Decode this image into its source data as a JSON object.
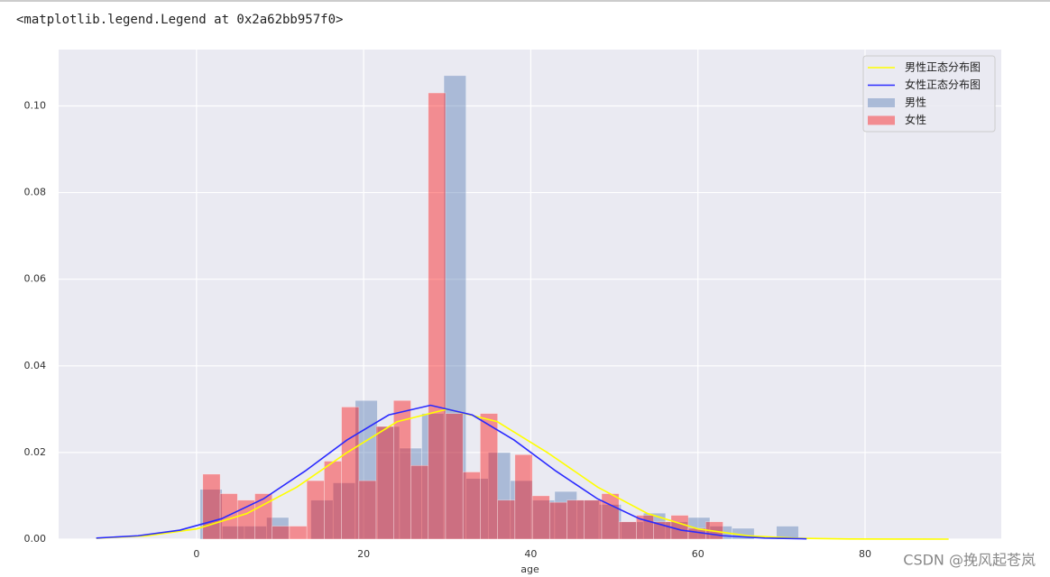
{
  "header": "<matplotlib.legend.Legend at 0x2a62bb957f0>",
  "watermark": "CSDN @挽风起苍岚",
  "chart_data": {
    "type": "hist",
    "xlabel": "age",
    "xlim": [
      -16.5,
      96.3
    ],
    "ylim": [
      0,
      0.113
    ],
    "xticks": [
      0,
      20,
      40,
      60,
      80
    ],
    "yticks": [
      {
        "value": 0,
        "label": "0.00"
      },
      {
        "value": 0.02,
        "label": "0.02"
      },
      {
        "value": 0.04,
        "label": "0.04"
      },
      {
        "value": 0.06,
        "label": "0.06"
      },
      {
        "value": 0.08,
        "label": "0.08"
      },
      {
        "value": 0.1,
        "label": "0.10"
      }
    ],
    "grid": true,
    "legend": "upper right",
    "series": [
      {
        "name": "男性正态分布图",
        "type": "line",
        "color": "#ffff00",
        "x": [
          -12,
          -6,
          0,
          6,
          12,
          18,
          24,
          30,
          36,
          42,
          48,
          54,
          60,
          66,
          72,
          78,
          84,
          90
        ],
        "values": [
          0.0002,
          0.00077,
          0.00236,
          0.00589,
          0.01201,
          0.01997,
          0.0271,
          0.03,
          0.0271,
          0.01997,
          0.01201,
          0.00589,
          0.00236,
          0.00077,
          0.0002,
          4e-05,
          1e-05,
          0
        ]
      },
      {
        "name": "女性正态分布图",
        "type": "line",
        "color": "#2a2aff",
        "x": [
          -12,
          -7,
          -2,
          3,
          8,
          13,
          18,
          23,
          28,
          33,
          38,
          43,
          48,
          53,
          58,
          63,
          68,
          73
        ],
        "values": [
          0.00025,
          0.00078,
          0.00207,
          0.00472,
          0.00929,
          0.01572,
          0.02288,
          0.02866,
          0.0309,
          0.02866,
          0.02288,
          0.01572,
          0.00929,
          0.00472,
          0.00207,
          0.00078,
          0.00025,
          7e-05
        ]
      },
      {
        "name": "男性",
        "type": "hist",
        "color": "#4c72b0",
        "bins": [
          0.42,
          3.07,
          5.73,
          8.38,
          11.03,
          13.68,
          16.34,
          18.99,
          21.64,
          24.29,
          26.95,
          29.6,
          32.25,
          34.91,
          37.56,
          40.21,
          42.86,
          45.52,
          48.17,
          50.82,
          53.47,
          56.13,
          58.78,
          61.43,
          64.08,
          66.74,
          69.39,
          72.04,
          74.69,
          77.35,
          80.0
        ],
        "values": [
          0.0115,
          0.003,
          0.003,
          0.005,
          0,
          0.009,
          0.013,
          0.032,
          0.026,
          0.021,
          0.029,
          0.107,
          0.014,
          0.02,
          0.0135,
          0.009,
          0.011,
          0.009,
          0.008,
          0.004,
          0.006,
          0.004,
          0.005,
          0.003,
          0.0025,
          0,
          0.003,
          0,
          0,
          0
        ]
      },
      {
        "name": "女性",
        "type": "hist",
        "color": "#ff0000",
        "bins": [
          0.75,
          2.83,
          4.9,
          6.98,
          9.05,
          11.13,
          13.2,
          15.28,
          17.35,
          19.43,
          21.5,
          23.58,
          25.65,
          27.73,
          29.8,
          31.88,
          33.95,
          36.03,
          38.1,
          40.18,
          42.25,
          44.33,
          46.4,
          48.48,
          50.55,
          52.63,
          54.7,
          56.78,
          58.85,
          60.93,
          63.0
        ],
        "values": [
          0.015,
          0.0105,
          0.009,
          0.0105,
          0.003,
          0.003,
          0.0135,
          0.018,
          0.0305,
          0.0135,
          0.026,
          0.032,
          0.017,
          0.103,
          0.029,
          0.0155,
          0.029,
          0.009,
          0.0195,
          0.01,
          0.0085,
          0.009,
          0.009,
          0.0105,
          0.004,
          0.0055,
          0.004,
          0.0055,
          0.0025,
          0.004
        ]
      }
    ]
  }
}
